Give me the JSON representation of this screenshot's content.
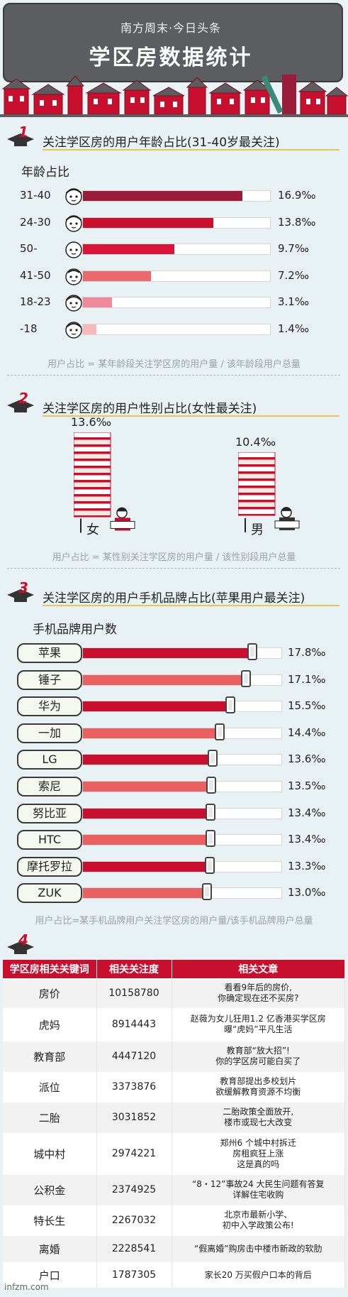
{
  "header": {
    "subtitle": "南方周末·今日头条",
    "title": "学区房数据统计"
  },
  "section1": {
    "number": "1",
    "title": "关注学区房的用户年龄占比(31-40岁最关注)",
    "subhead": "年龄占比",
    "note": "用户占比 = 某年龄段关注学区房的用户量 / 该年龄段用户总量"
  },
  "section2": {
    "number": "2",
    "title": "关注学区房的用户性别占比(女性最关注)",
    "note": "用户占比 = 某性别关注学区房的用户量 / 该性别段用户总量"
  },
  "section3": {
    "number": "3",
    "title": "关注学区房的用户手机品牌占比(苹果用户最关注)",
    "subhead": "手机品牌用户数",
    "note": "用户占比=某手机品牌用户关注学区房的用户量/该手机品牌用户总量"
  },
  "section4": {
    "number": "4"
  },
  "chart_data": [
    {
      "type": "bar",
      "title": "关注学区房的用户年龄占比(31-40岁最关注)",
      "ylabel": "年龄占比",
      "categories": [
        "31-40",
        "24-30",
        "50-",
        "41-50",
        "18-23",
        "-18"
      ],
      "values": [
        16.9,
        13.8,
        9.7,
        7.2,
        3.1,
        1.4
      ],
      "labels": [
        "16.9‰",
        "13.8‰",
        "9.7‰",
        "7.2‰",
        "3.1‰",
        "1.4‰"
      ],
      "unit": "‰",
      "colors": [
        "#9b1b3a",
        "#c8102e",
        "#d9163a",
        "#e86a6a",
        "#f08a9a",
        "#f7b8bd"
      ],
      "xlim": [
        0,
        20
      ]
    },
    {
      "type": "bar",
      "title": "关注学区房的用户性别占比(女性最关注)",
      "categories": [
        "女",
        "男"
      ],
      "values": [
        13.6,
        10.4
      ],
      "labels": [
        "13.6‰",
        "10.4‰"
      ],
      "unit": "‰"
    },
    {
      "type": "bar",
      "title": "关注学区房的用户手机品牌占比(苹果用户最关注)",
      "ylabel": "手机品牌用户数",
      "categories": [
        "苹果",
        "锤子",
        "华为",
        "一加",
        "LG",
        "索尼",
        "努比亚",
        "HTC",
        "摩托罗拉",
        "ZUK"
      ],
      "values": [
        17.8,
        17.1,
        15.5,
        14.4,
        13.6,
        13.5,
        13.4,
        13.4,
        13.3,
        13.0
      ],
      "labels": [
        "17.8‰",
        "17.1‰",
        "15.5‰",
        "14.4‰",
        "13.6‰",
        "13.5‰",
        "13.4‰",
        "13.4‰",
        "13.3‰",
        "13.0‰"
      ],
      "unit": "‰",
      "colors": [
        "#c8102e",
        "#e86060"
      ],
      "xlim": [
        0,
        21
      ]
    },
    {
      "type": "table",
      "columns": [
        "学区房相关关键词",
        "相关关注度",
        "相关文章"
      ],
      "rows": [
        [
          "房价",
          "10158780",
          "看看9年后的房价,\n你确定现在还不买房?"
        ],
        [
          "虎妈",
          "8914443",
          "赵薇为女儿狂用1.2 亿香港买学区房\n曝“虎妈”平凡生活"
        ],
        [
          "教育部",
          "4447120",
          "教育部“放大招”!\n你的学区房可能白买了"
        ],
        [
          "派位",
          "3373876",
          "教育部提出多校划片\n欲缓解教育资源不均衡"
        ],
        [
          "二胎",
          "3031852",
          "二胎政策全面放开,\n楼市或现七大改变"
        ],
        [
          "城中村",
          "2974221",
          "郑州6 个城中村拆迁\n房租疯狂上涨\n这是真的吗"
        ],
        [
          "公积金",
          "2374925",
          "“8・12”事故24 大民生问题有答复\n详解住宅收购"
        ],
        [
          "特长生",
          "2267032",
          "北京市最新小学、\n初中入学政策公布!"
        ],
        [
          "离婚",
          "2228541",
          "“假离婚”购房击中楼市新政的软肋"
        ],
        [
          "户口",
          "1787305",
          "家长20 万买假户口本的背后"
        ]
      ]
    }
  ],
  "watermark": "infzm.com"
}
